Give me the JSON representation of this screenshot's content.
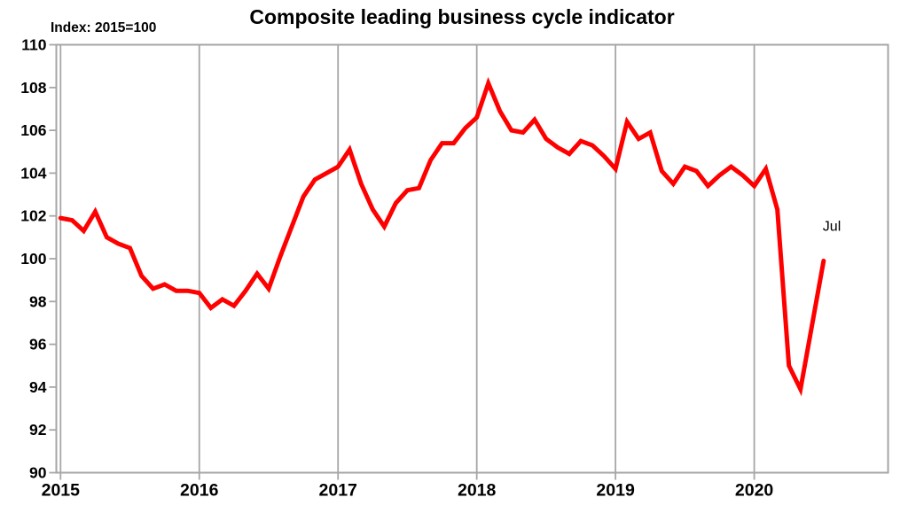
{
  "figure": {
    "title": "Composite leading business cycle indicator",
    "index_note": "Index: 2015=100"
  },
  "chart_data": {
    "type": "line",
    "title": "Composite leading business cycle indicator",
    "subtitle": "Index: 2015=100",
    "frequency": "monthly",
    "x_tick_labels": [
      "2015",
      "2016",
      "2017",
      "2018",
      "2019",
      "2020"
    ],
    "y_ticks": [
      90,
      92,
      94,
      96,
      98,
      100,
      102,
      104,
      106,
      108,
      110
    ],
    "ylim": [
      90,
      110
    ],
    "x_domain": [
      "2015-01",
      "2020-12"
    ],
    "grid": "vertical-year-lines-only",
    "legend": "none",
    "colors": {
      "line": "#ff0000",
      "grid": "#a6a6a6",
      "text": "#000000",
      "background": "#ffffff"
    },
    "series": [
      {
        "name": "Composite leading business cycle indicator (Index: 2015=100)",
        "start_month": "2015-01",
        "end_month": "2020-07",
        "values": [
          101.9,
          101.8,
          101.3,
          102.2,
          101.0,
          100.7,
          100.5,
          99.2,
          98.6,
          98.8,
          98.5,
          98.5,
          98.4,
          97.7,
          98.1,
          97.8,
          98.5,
          99.3,
          98.6,
          100.1,
          101.5,
          102.9,
          103.7,
          104.0,
          104.3,
          105.1,
          103.5,
          102.3,
          101.5,
          102.6,
          103.2,
          103.3,
          104.6,
          105.4,
          105.4,
          106.1,
          106.6,
          108.2,
          106.9,
          106.0,
          105.9,
          106.5,
          105.6,
          105.2,
          104.9,
          105.5,
          105.3,
          104.8,
          104.2,
          106.4,
          105.6,
          105.9,
          104.1,
          103.5,
          104.3,
          104.1,
          103.4,
          103.9,
          104.3,
          103.9,
          103.4,
          104.2,
          102.3,
          95.0,
          93.9,
          96.9,
          99.9
        ]
      }
    ],
    "end_point_label": {
      "text": "Jul",
      "color": "#ff0000"
    }
  }
}
